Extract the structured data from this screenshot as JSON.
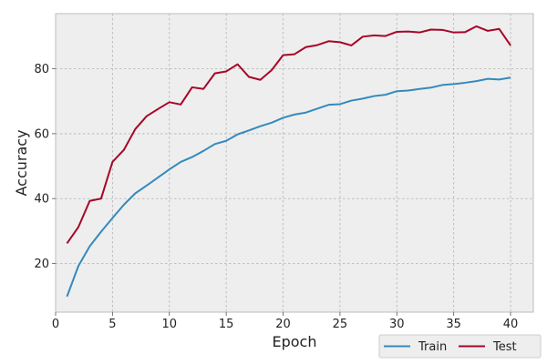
{
  "chart_data": {
    "type": "line",
    "title": "",
    "xlabel": "Epoch",
    "ylabel": "Accuracy",
    "xlim": [
      0,
      42
    ],
    "ylim": [
      5,
      97
    ],
    "xticks": [
      0,
      5,
      10,
      15,
      20,
      25,
      30,
      35,
      40
    ],
    "yticks": [
      20,
      40,
      60,
      80
    ],
    "grid": true,
    "legend_position": "bottom-right, outside plot",
    "colors": {
      "plot_background": "#eeeeee",
      "grid": "#b2b2b2",
      "frame": "#bcbcbc"
    },
    "x": [
      1,
      2,
      3,
      4,
      5,
      6,
      7,
      8,
      9,
      10,
      11,
      12,
      13,
      14,
      15,
      16,
      17,
      18,
      19,
      20,
      21,
      22,
      23,
      24,
      25,
      26,
      27,
      28,
      29,
      30,
      31,
      32,
      33,
      34,
      35,
      36,
      37,
      38,
      39,
      40
    ],
    "series": [
      {
        "name": "Train",
        "color": "#348abd",
        "values": [
          9.8,
          19.2,
          25.3,
          29.8,
          34.0,
          38.1,
          41.6,
          44.0,
          46.5,
          49.0,
          51.3,
          52.8,
          54.7,
          56.8,
          57.8,
          59.8,
          61.0,
          62.3,
          63.4,
          64.9,
          65.9,
          66.5,
          67.7,
          68.9,
          69.1,
          70.2,
          70.8,
          71.6,
          72.0,
          73.1,
          73.3,
          73.8,
          74.2,
          75.0,
          75.3,
          75.7,
          76.2,
          76.9,
          76.7,
          77.3
        ]
      },
      {
        "name": "Test",
        "color": "#a60628",
        "values": [
          26.2,
          31.2,
          39.3,
          40.0,
          51.3,
          55.0,
          61.4,
          65.4,
          67.6,
          69.7,
          69.0,
          74.3,
          73.8,
          78.6,
          79.2,
          81.4,
          77.5,
          76.6,
          79.6,
          84.2,
          84.5,
          86.7,
          87.3,
          88.5,
          88.2,
          87.2,
          89.9,
          90.3,
          90.1,
          91.4,
          91.5,
          91.2,
          92.1,
          92.0,
          91.2,
          91.3,
          93.1,
          91.7,
          92.3,
          87.2
        ]
      }
    ]
  }
}
